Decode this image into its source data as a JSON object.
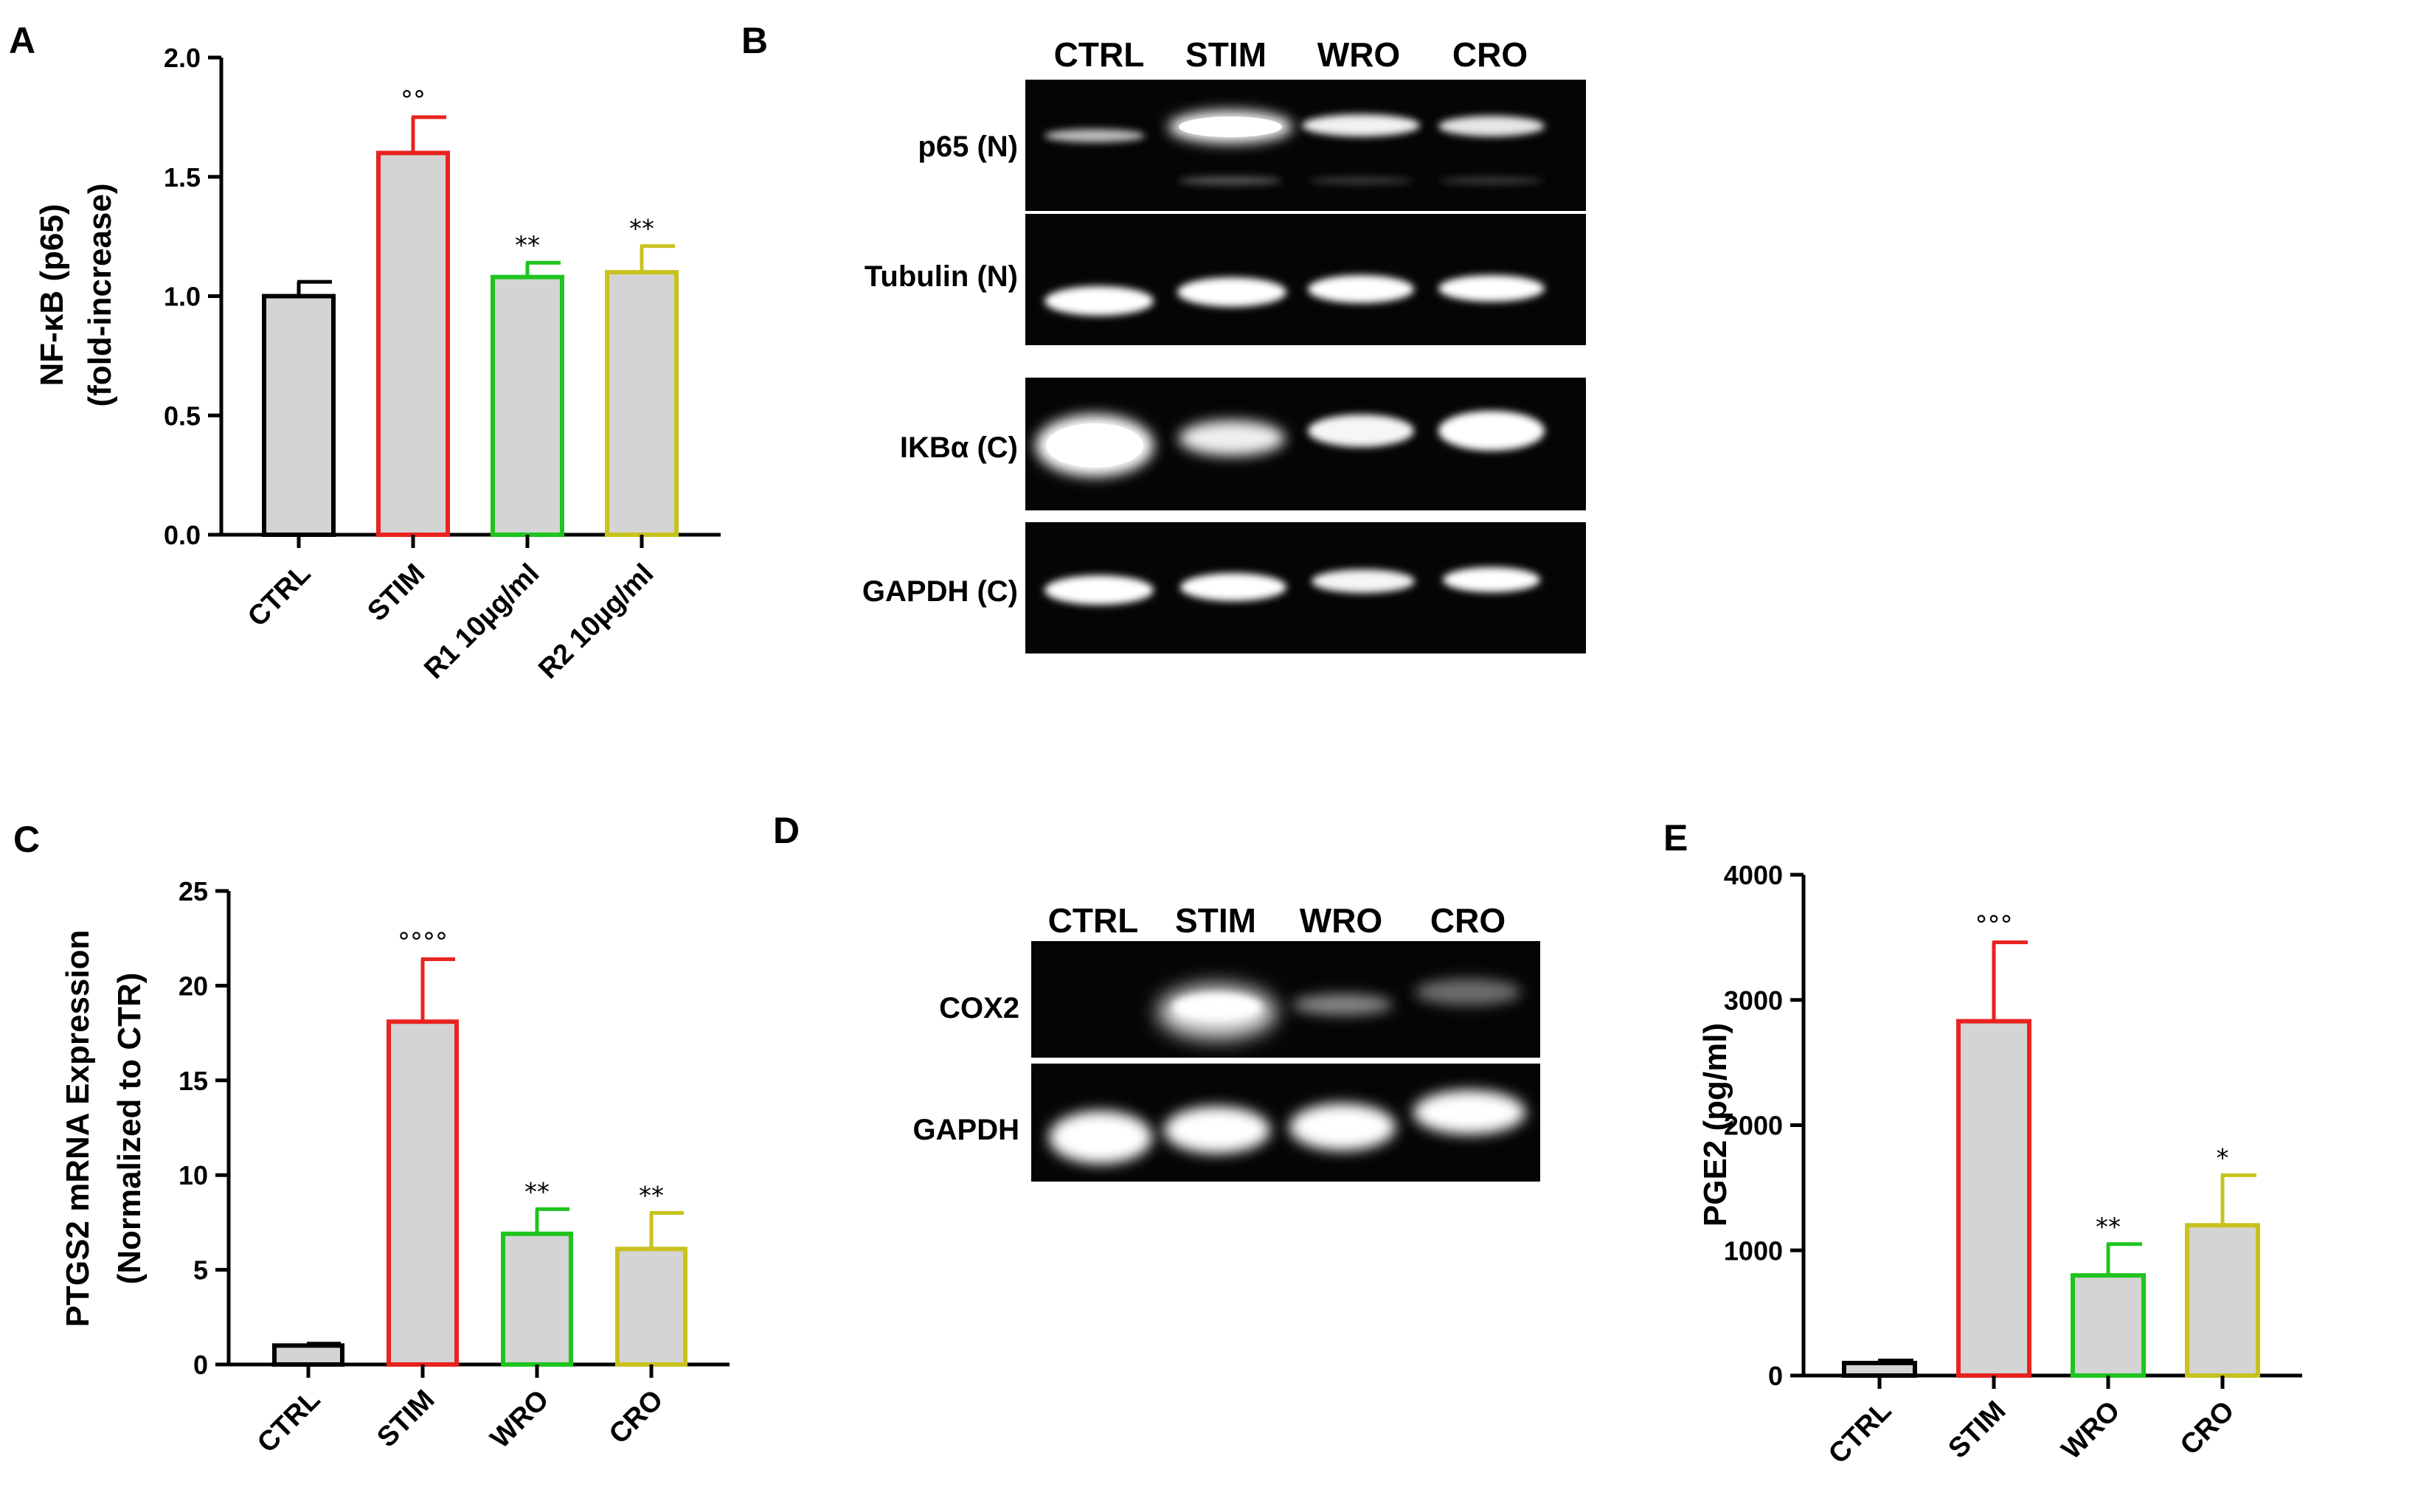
{
  "panels": {
    "A": "A",
    "B": "B",
    "C": "C",
    "D": "D",
    "E": "E"
  },
  "chart_data": [
    {
      "id": "A",
      "type": "bar",
      "ylabel_line1": "NF-κB (p65)",
      "ylabel_line2": "(fold-increase)",
      "categories": [
        "CTRL",
        "STIM",
        "R1 10µg/ml",
        "R2 10µg/ml"
      ],
      "values": [
        1.0,
        1.6,
        1.08,
        1.1
      ],
      "errors": [
        0.06,
        0.15,
        0.06,
        0.11
      ],
      "significance": [
        "",
        "°°",
        "**",
        "**"
      ],
      "ylim": [
        0,
        2.0
      ],
      "yticks": [
        "0.0",
        "0.5",
        "1.0",
        "1.5",
        "2.0"
      ],
      "colors": [
        "#000000",
        "#e8231f",
        "#1fc41f",
        "#c8c21e"
      ],
      "fill": "#d4d4d4"
    },
    {
      "id": "C",
      "type": "bar",
      "ylabel_line1": "PTGS2 mRNA Expression",
      "ylabel_line2": "(Normalized to CTR)",
      "categories": [
        "CTRL",
        "STIM",
        "WRO",
        "CRO"
      ],
      "values": [
        1.0,
        18.1,
        6.9,
        6.1
      ],
      "errors": [
        0.1,
        3.3,
        1.3,
        1.9
      ],
      "significance": [
        "",
        "°°°°",
        "**",
        "**"
      ],
      "ylim": [
        0,
        25
      ],
      "yticks": [
        "0",
        "5",
        "10",
        "15",
        "20",
        "25"
      ],
      "colors": [
        "#000000",
        "#e8231f",
        "#1fc41f",
        "#c8c21e"
      ],
      "fill": "#d4d4d4"
    },
    {
      "id": "E",
      "type": "bar",
      "ylabel_line1": "PGE2 (pg/ml)",
      "ylabel_line2": "",
      "categories": [
        "CTRL",
        "STIM",
        "WRO",
        "CRO"
      ],
      "values": [
        100,
        2830,
        800,
        1200
      ],
      "errors": [
        20,
        630,
        250,
        400
      ],
      "significance": [
        "",
        "°°°",
        "**",
        "*"
      ],
      "ylim": [
        0,
        4000
      ],
      "yticks": [
        "0",
        "1000",
        "2000",
        "3000",
        "4000"
      ],
      "colors": [
        "#000000",
        "#e8231f",
        "#1fc41f",
        "#c8c21e"
      ],
      "fill": "#d4d4d4"
    }
  ],
  "blots": {
    "B": {
      "lanes": [
        "CTRL",
        "STIM",
        "WRO",
        "CRO"
      ],
      "rows": [
        "p65 (N)",
        "Tubulin (N)",
        "IKBα (C)",
        "GAPDH (C)"
      ]
    },
    "D": {
      "lanes": [
        "CTRL",
        "STIM",
        "WRO",
        "CRO"
      ],
      "rows": [
        "COX2",
        "GAPDH"
      ]
    }
  }
}
